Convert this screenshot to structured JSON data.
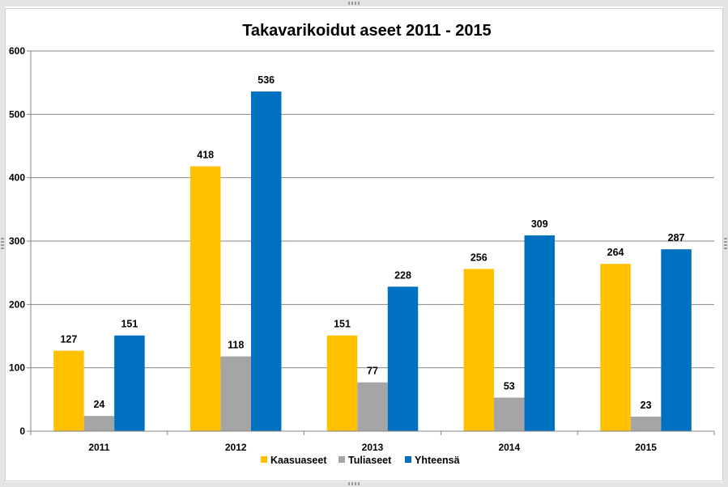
{
  "chart_data": {
    "type": "bar",
    "title": "Takavarikoidut aseet 2011 - 2015",
    "categories": [
      "2011",
      "2012",
      "2013",
      "2014",
      "2015"
    ],
    "series": [
      {
        "name": "Kaasuaseet",
        "color": "#ffc000",
        "values": [
          127,
          418,
          151,
          256,
          264
        ]
      },
      {
        "name": "Tuliaseet",
        "color": "#a5a5a5",
        "values": [
          24,
          118,
          77,
          53,
          23
        ]
      },
      {
        "name": "Yhteensä",
        "color": "#0070c0",
        "values": [
          151,
          536,
          228,
          309,
          287
        ]
      }
    ],
    "ylim": [
      0,
      600
    ],
    "yticks": [
      0,
      100,
      200,
      300,
      400,
      500,
      600
    ],
    "xlabel": "",
    "ylabel": "",
    "grid": true,
    "legend_position": "bottom",
    "data_labels": true
  }
}
